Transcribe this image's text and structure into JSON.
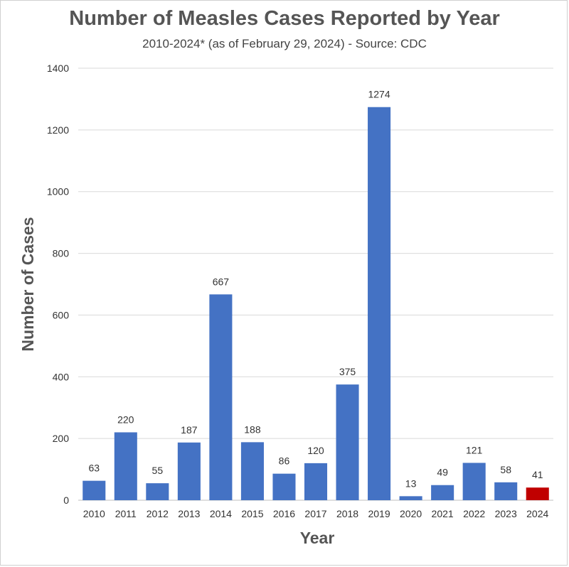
{
  "chart_data": {
    "type": "bar",
    "title": "Number of Measles Cases Reported by Year",
    "subtitle": "2010-2024* (as of February 29, 2024) - Source: CDC",
    "xlabel": "Year",
    "ylabel": "Number of Cases",
    "categories": [
      "2010",
      "2011",
      "2012",
      "2013",
      "2014",
      "2015",
      "2016",
      "2017",
      "2018",
      "2019",
      "2020",
      "2021",
      "2022",
      "2023",
      "2024"
    ],
    "values": [
      63,
      220,
      55,
      187,
      667,
      188,
      86,
      120,
      375,
      1274,
      13,
      49,
      121,
      58,
      41
    ],
    "data_labels": [
      "63",
      "220",
      "55",
      "187",
      "667",
      "188",
      "86",
      "120",
      "375",
      "1274",
      "13",
      "49",
      "121",
      "58",
      "41"
    ],
    "ylim": [
      0,
      1400
    ],
    "yticks": [
      "0",
      "200",
      "400",
      "600",
      "800",
      "1000",
      "1200",
      "1400"
    ],
    "grid": true,
    "legend": "none",
    "colors": {
      "bar": "#4472C4",
      "highlight_bar": "#C00000",
      "grid": "#d9d9d9",
      "text": "#333333"
    },
    "highlight_index": 14
  }
}
